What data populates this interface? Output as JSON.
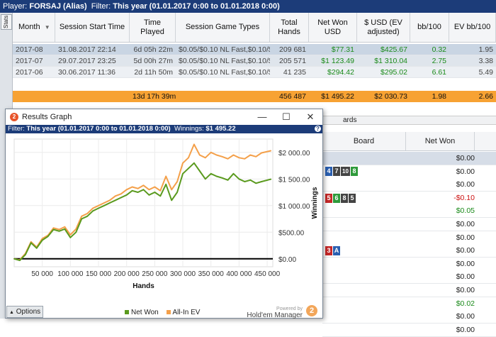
{
  "topbar": {
    "player_label": "Player:",
    "player": "FORSAJ (Alias)",
    "filter_label": "Filter:",
    "filter": "This year (01.01.2017 0:00 to 01.01.2018 0:00)"
  },
  "side": {
    "stats_tab": "Stats"
  },
  "sessions": {
    "columns": [
      "Month",
      "Session Start Time",
      "Time Played",
      "Session Game Types",
      "Total Hands",
      "Net Won USD",
      "$ USD (EV adjusted)",
      "bb/100",
      "EV bb/100"
    ],
    "rows": [
      {
        "month": "2017-08",
        "start": "31.08.2017 22:14",
        "played": "6d 05h 22m",
        "types": "$0.05/$0.10 NL Fast,$0.10/$0.",
        "hands": "209 681",
        "net": "$77.31",
        "ev": "$425.67",
        "bb": "0.32",
        "evbb": "1.95"
      },
      {
        "month": "2017-07",
        "start": "29.07.2017 23:25",
        "played": "5d 00h 27m",
        "types": "$0.05/$0.10 NL Fast,$0.10/$0.",
        "hands": "205 571",
        "net": "$1 123.49",
        "ev": "$1 310.04",
        "bb": "2.75",
        "evbb": "3.38"
      },
      {
        "month": "2017-06",
        "start": "30.06.2017 11:36",
        "played": "2d 11h 50m",
        "types": "$0.05/$0.10 NL Fast,$0.10/$0.",
        "hands": "41 235",
        "net": "$294.42",
        "ev": "$295.02",
        "bb": "6.61",
        "evbb": "5.49"
      }
    ],
    "summary": {
      "played": "13d 17h 39m",
      "hands": "456 487",
      "net": "$1 495.22",
      "ev": "$2 030.73",
      "bb": "1.98",
      "evbb": "2.66"
    }
  },
  "hands": {
    "partial_header": "ards",
    "columns": [
      "Board",
      "Net Won"
    ],
    "rows": [
      {
        "cards": [],
        "net": "$0.00"
      },
      {
        "cards": [
          {
            "t": "4",
            "c": "#2a5fb0"
          },
          {
            "t": "7",
            "c": "#444"
          },
          {
            "t": "10",
            "c": "#444"
          },
          {
            "t": "8",
            "c": "#2e9a3a"
          }
        ],
        "net": "$0.00"
      },
      {
        "cards": [],
        "net": "$0.00"
      },
      {
        "cards": [
          {
            "t": "5",
            "c": "#c62828"
          },
          {
            "t": "6",
            "c": "#2e9a3a"
          },
          {
            "t": "8",
            "c": "#444"
          },
          {
            "t": "5",
            "c": "#444"
          }
        ],
        "net": "-$0.10"
      },
      {
        "cards": [],
        "net": "$0.05"
      },
      {
        "cards": [],
        "net": "$0.00"
      },
      {
        "cards": [],
        "net": "$0.00"
      },
      {
        "cards": [
          {
            "t": "3",
            "c": "#c62828"
          },
          {
            "t": "A",
            "c": "#2a5fb0"
          }
        ],
        "net": "$0.00"
      },
      {
        "cards": [],
        "net": "$0.00"
      },
      {
        "cards": [],
        "net": "$0.00"
      },
      {
        "cards": [],
        "net": "$0.00"
      },
      {
        "cards": [],
        "net": "$0.02"
      },
      {
        "cards": [],
        "net": "$0.00"
      },
      {
        "cards": [],
        "net": "$0.00"
      }
    ]
  },
  "graph_window": {
    "title": "Results Graph",
    "min_glyph": "—",
    "max_glyph": "☐",
    "close_glyph": "✕",
    "filter_label": "Filter:",
    "filter": "This year (01.01.2017 0:00 to 01.01.2018 0:00)",
    "winnings_label": "Winnings:",
    "winnings": "$1 495.22",
    "help": "?",
    "options_label": "Options",
    "powered_by": "Powered by",
    "brand": "Hold'em Manager",
    "brand_mark": "2"
  },
  "colors": {
    "net_won": "#5a9a1e",
    "all_in_ev": "#f4a04a",
    "header_blue": "#1c3c79",
    "summary_orange": "#f7a233"
  },
  "chart_data": {
    "type": "line",
    "xlabel": "Hands",
    "ylabel": "Winnings",
    "xlim": [
      0,
      460000
    ],
    "ylim": [
      -150,
      2250
    ],
    "x_ticks": [
      50000,
      100000,
      150000,
      200000,
      250000,
      300000,
      350000,
      400000,
      450000
    ],
    "x_tick_labels": [
      "50 000",
      "100 000",
      "150 000",
      "200 000",
      "250 000",
      "300 000",
      "350 000",
      "400 000",
      "450 000"
    ],
    "y_ticks": [
      0,
      500,
      1000,
      1500,
      2000
    ],
    "y_tick_labels": [
      "$0.00",
      "$500.00",
      "$1 000.00",
      "$1 500.00",
      "$2 000.00"
    ],
    "grid": true,
    "legend": "bottom-center",
    "x": [
      0,
      10000,
      20000,
      30000,
      40000,
      50000,
      60000,
      70000,
      80000,
      90000,
      100000,
      110000,
      120000,
      130000,
      140000,
      150000,
      160000,
      170000,
      180000,
      190000,
      200000,
      210000,
      220000,
      230000,
      240000,
      250000,
      260000,
      270000,
      280000,
      290000,
      300000,
      310000,
      320000,
      330000,
      340000,
      350000,
      360000,
      370000,
      380000,
      390000,
      400000,
      410000,
      420000,
      430000,
      440000,
      456487
    ],
    "series": [
      {
        "name": "Net Won",
        "values": [
          0,
          -30,
          80,
          300,
          200,
          350,
          420,
          550,
          520,
          560,
          400,
          500,
          750,
          800,
          900,
          950,
          1000,
          1050,
          1100,
          1150,
          1200,
          1280,
          1250,
          1300,
          1200,
          1250,
          1180,
          1400,
          1100,
          1250,
          1600,
          1700,
          1800,
          1650,
          1500,
          1600,
          1550,
          1520,
          1480,
          1600,
          1500,
          1450,
          1480,
          1420,
          1450,
          1495
        ]
      },
      {
        "name": "All-In EV",
        "values": [
          0,
          -20,
          100,
          320,
          220,
          380,
          440,
          580,
          550,
          600,
          450,
          560,
          800,
          850,
          950,
          1000,
          1050,
          1100,
          1180,
          1220,
          1300,
          1350,
          1320,
          1380,
          1300,
          1350,
          1280,
          1550,
          1300,
          1450,
          1800,
          1900,
          2150,
          1950,
          1900,
          2000,
          1950,
          1920,
          1880,
          1950,
          1900,
          1880,
          1950,
          1920,
          1990,
          2030
        ]
      }
    ]
  }
}
